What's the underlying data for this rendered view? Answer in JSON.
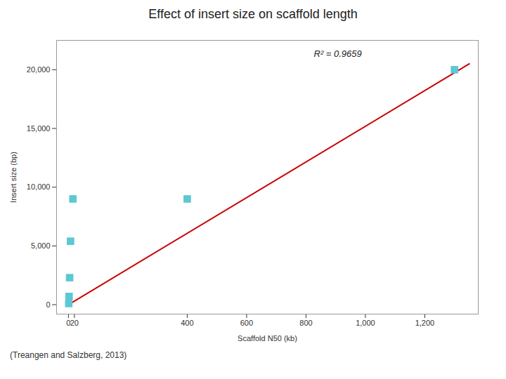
{
  "chart_data": {
    "type": "scatter",
    "title": "Effect of insert size on scaffold length",
    "xlabel": "Scaffold N50 (kb)",
    "ylabel": "Insert size (bp)",
    "annotation": "R² = 0.9659",
    "caption": "(Treangen and Salzberg, 2013)",
    "series": [
      {
        "type": "line",
        "x": [
          0,
          1350
        ],
        "values": [
          0,
          20500
        ],
        "color": "#cc0000"
      },
      {
        "type": "scatter",
        "x": [
          1,
          2,
          4,
          7,
          15,
          400,
          1300
        ],
        "values": [
          100,
          700,
          2300,
          5400,
          9000,
          9000,
          20000
        ],
        "color": "#5bc8d3",
        "marker": "square"
      }
    ],
    "xlim": [
      -40,
      1380
    ],
    "ylim": [
      -800,
      22500
    ],
    "xticks": [
      0,
      20,
      400,
      600,
      800,
      {
        "value": 1000,
        "label": "1,000"
      },
      {
        "value": 1200,
        "label": "1,200"
      }
    ],
    "yticks": [
      0,
      {
        "value": 5000,
        "label": "5,000"
      },
      {
        "value": 10000,
        "label": "10,000"
      },
      {
        "value": 15000,
        "label": "15,000"
      },
      {
        "value": 20000,
        "label": "20,000"
      }
    ],
    "grid": false
  }
}
